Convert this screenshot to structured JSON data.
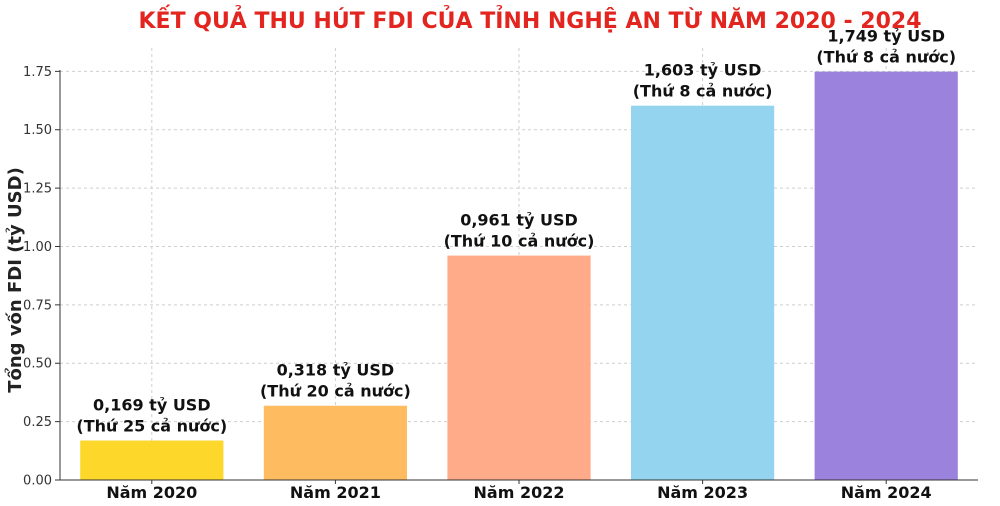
{
  "chart_data": {
    "type": "bar",
    "title": "KẾT QUẢ THU HÚT FDI CỦA TỈNH NGHỆ AN TỪ NĂM 2020 - 2024",
    "ylabel": "Tổng vốn FDI (tỷ USD)",
    "xlabel": "",
    "categories": [
      "Năm 2020",
      "Năm 2021",
      "Năm 2022",
      "Năm 2023",
      "Năm 2024"
    ],
    "values": [
      0.169,
      0.318,
      0.961,
      1.603,
      1.749
    ],
    "data_labels": [
      [
        "0,169 tỷ USD",
        "(Thứ 25 cả nước)"
      ],
      [
        "0,318 tỷ USD",
        "(Thứ 20 cả nước)"
      ],
      [
        "0,961 tỷ USD",
        "(Thứ 10 cả nước)"
      ],
      [
        "1,603 tỷ USD",
        "(Thứ 8 cả nước)"
      ],
      [
        "1,749 tỷ USD",
        "(Thứ 8 cả nước)"
      ]
    ],
    "colors": [
      "#fdd82a",
      "#ffbb60",
      "#ffaa88",
      "#94d4ee",
      "#9b82dd"
    ],
    "ylim": [
      0,
      1.85
    ],
    "yticks": [
      0,
      0.25,
      0.5,
      0.75,
      1.0,
      1.25,
      1.5,
      1.75
    ],
    "ytick_labels": [
      "0.00",
      "0.25",
      "0.50",
      "0.75",
      "1.00",
      "1.25",
      "1.50",
      "1.75"
    ],
    "grid": true
  }
}
